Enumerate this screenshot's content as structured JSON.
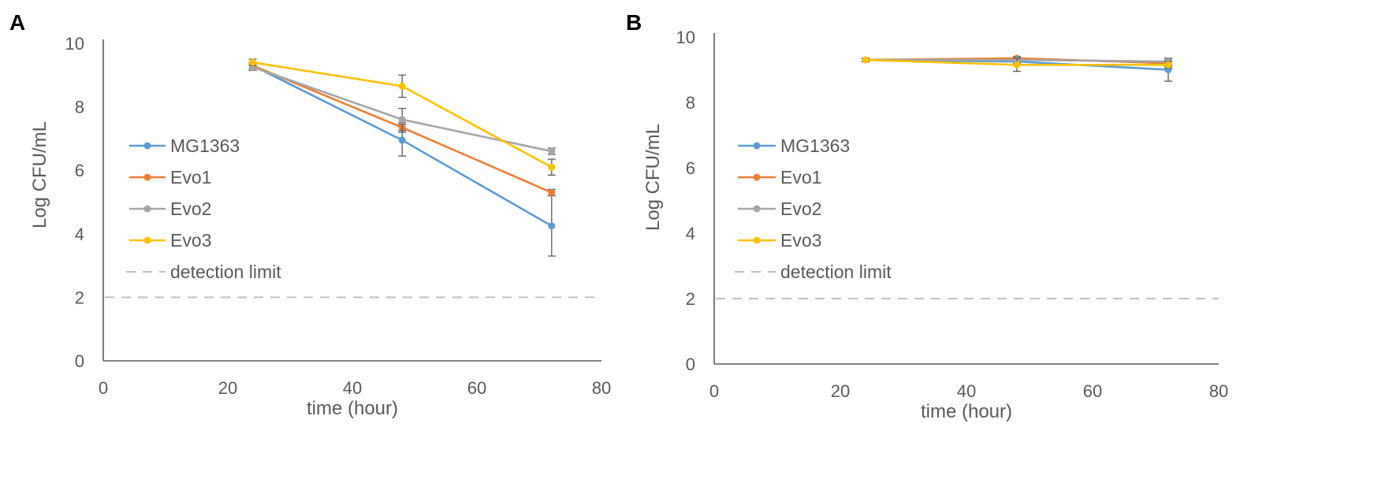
{
  "chart_data": [
    {
      "panel": "A",
      "type": "line",
      "xlabel": "time (hour)",
      "ylabel": "Log CFU/mL",
      "xlim": [
        0,
        80
      ],
      "ylim": [
        0,
        10
      ],
      "xticks": [
        0,
        20,
        40,
        60,
        80
      ],
      "yticks": [
        0,
        2,
        4,
        6,
        8,
        10
      ],
      "grid": false,
      "legend_position": "left",
      "x": [
        24,
        48,
        72
      ],
      "series": [
        {
          "name": "MG1363",
          "color": "#5B9BD5",
          "values": [
            9.3,
            6.95,
            4.25
          ],
          "errors": [
            0.1,
            0.5,
            0.95
          ]
        },
        {
          "name": "Evo1",
          "color": "#ED7D31",
          "values": [
            9.3,
            7.35,
            5.3
          ],
          "errors": [
            0.1,
            0.15,
            0.1
          ]
        },
        {
          "name": "Evo2",
          "color": "#A5A5A5",
          "values": [
            9.25,
            7.6,
            6.6
          ],
          "errors": [
            0.1,
            0.35,
            0.1
          ]
        },
        {
          "name": "Evo3",
          "color": "#FFC000",
          "values": [
            9.4,
            8.65,
            6.1
          ],
          "errors": [
            0.1,
            0.35,
            0.25
          ]
        }
      ],
      "reference_lines": [
        {
          "name": "detection limit",
          "y": 2,
          "color": "#BFBFBF",
          "style": "dashed"
        }
      ]
    },
    {
      "panel": "B",
      "type": "line",
      "xlabel": "time (hour)",
      "ylabel": "Log CFU/mL",
      "xlim": [
        0,
        80
      ],
      "ylim": [
        0,
        10
      ],
      "xticks": [
        0,
        20,
        40,
        60,
        80
      ],
      "yticks": [
        0,
        2,
        4,
        6,
        8,
        10
      ],
      "grid": false,
      "legend_position": "left",
      "x": [
        24,
        48,
        72
      ],
      "series": [
        {
          "name": "MG1363",
          "color": "#5B9BD5",
          "values": [
            9.3,
            9.25,
            9.0
          ],
          "errors": [
            0.05,
            0.1,
            0.35
          ]
        },
        {
          "name": "Evo1",
          "color": "#ED7D31",
          "values": [
            9.3,
            9.35,
            9.2
          ],
          "errors": [
            0.05,
            0.05,
            0.1
          ]
        },
        {
          "name": "Evo2",
          "color": "#A5A5A5",
          "values": [
            9.3,
            9.3,
            9.25
          ],
          "errors": [
            0.05,
            0.1,
            0.1
          ]
        },
        {
          "name": "Evo3",
          "color": "#FFC000",
          "values": [
            9.3,
            9.15,
            9.15
          ],
          "errors": [
            0.05,
            0.2,
            0.1
          ]
        }
      ],
      "reference_lines": [
        {
          "name": "detection limit",
          "y": 2,
          "color": "#BFBFBF",
          "style": "dashed"
        }
      ]
    }
  ]
}
